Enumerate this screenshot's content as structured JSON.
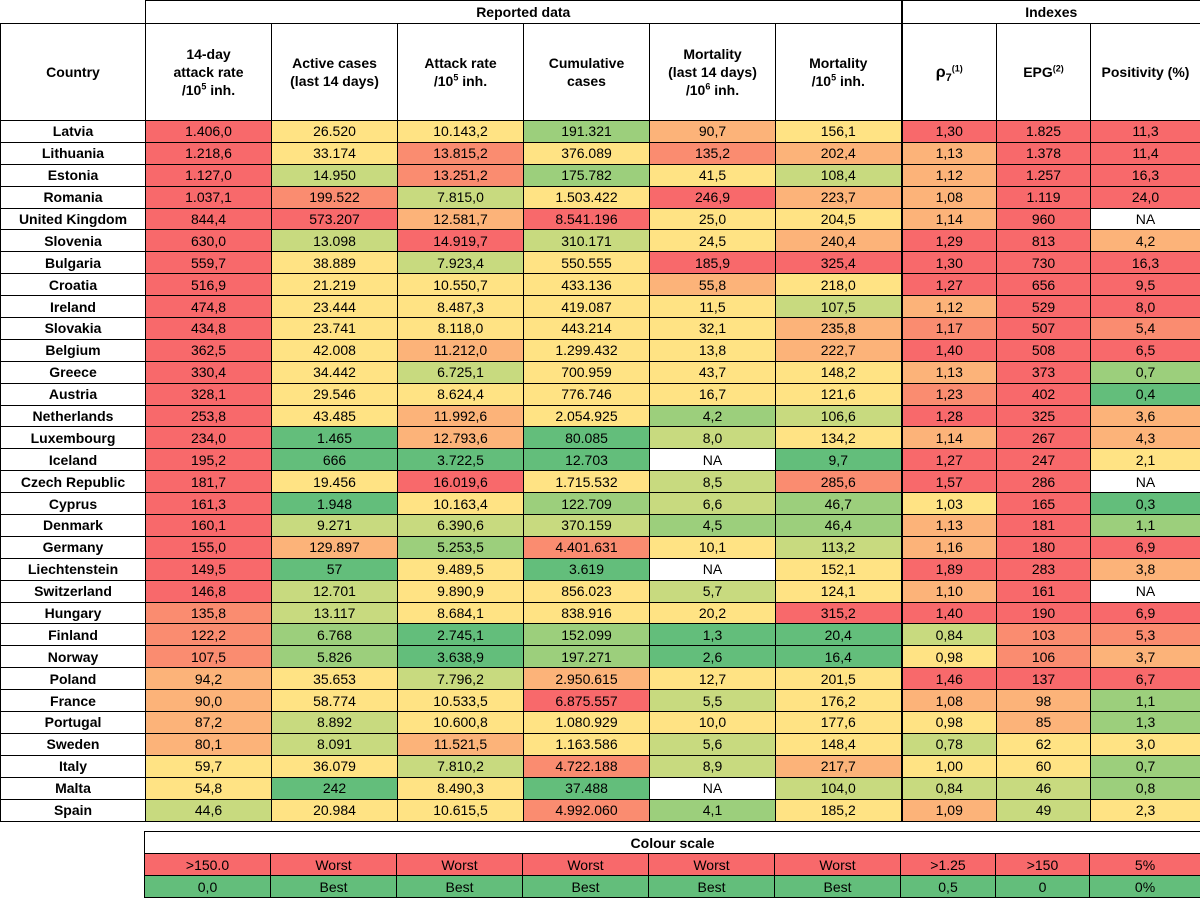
{
  "colors": {
    "c1": "#f8696b",
    "c2": "#fa8c70",
    "c3": "#fcb379",
    "c4": "#ffe384",
    "c5": "#c8da7f",
    "c6": "#9ccf7c",
    "c7": "#63be7b",
    "white": "#ffffff"
  },
  "header": {
    "group_reported": "Reported data",
    "group_indexes": "Indexes",
    "col_country": "Country",
    "col_attack14_l1": "14-day",
    "col_attack14_l2": "attack rate",
    "col_attack14_l3": "/10",
    "col_attack14_sup": "5",
    "col_attack14_l3b": " inh.",
    "col_active_l1": "Active cases",
    "col_active_l2": "(last 14 days)",
    "col_attack_l1": "Attack rate",
    "col_attack_l2": "/10",
    "col_attack_sup": "5",
    "col_attack_l2b": " inh.",
    "col_cum_l1": "Cumulative",
    "col_cum_l2": "cases",
    "col_mort14_l1": "Mortality",
    "col_mort14_l2": "(last 14 days)",
    "col_mort14_l3": "/10",
    "col_mort14_sup": "6",
    "col_mort14_l3b": " inh.",
    "col_mort_l1": "Mortality",
    "col_mort_l2": "/10",
    "col_mort_sup": "5",
    "col_mort_l2b": " inh.",
    "col_rho": "ρ",
    "col_rho_sub": "7",
    "col_rho_sup": "(1)",
    "col_epg": "EPG",
    "col_epg_sup": "(2)",
    "col_pos": "Positivity (%)"
  },
  "rows": [
    {
      "country": "Latvia",
      "vals": [
        "1.406,0",
        "26.520",
        "10.143,2",
        "191.321",
        "90,7",
        "156,1",
        "1,30",
        "1.825",
        "11,3"
      ],
      "c": [
        "c1",
        "c4",
        "c4",
        "c6",
        "c3",
        "c4",
        "c1",
        "c1",
        "c1"
      ]
    },
    {
      "country": "Lithuania",
      "vals": [
        "1.218,6",
        "33.174",
        "13.815,2",
        "376.089",
        "135,2",
        "202,4",
        "1,13",
        "1.378",
        "11,4"
      ],
      "c": [
        "c1",
        "c4",
        "c2",
        "c4",
        "c2",
        "c3",
        "c3",
        "c1",
        "c1"
      ]
    },
    {
      "country": "Estonia",
      "vals": [
        "1.127,0",
        "14.950",
        "13.251,2",
        "175.782",
        "41,5",
        "108,4",
        "1,12",
        "1.257",
        "16,3"
      ],
      "c": [
        "c1",
        "c5",
        "c2",
        "c6",
        "c4",
        "c5",
        "c3",
        "c1",
        "c1"
      ]
    },
    {
      "country": "Romania",
      "vals": [
        "1.037,1",
        "199.522",
        "7.815,0",
        "1.503.422",
        "246,9",
        "223,7",
        "1,08",
        "1.119",
        "24,0"
      ],
      "c": [
        "c1",
        "c2",
        "c5",
        "c4",
        "c1",
        "c3",
        "c3",
        "c1",
        "c1"
      ]
    },
    {
      "country": "United Kingdom",
      "vals": [
        "844,4",
        "573.207",
        "12.581,7",
        "8.541.196",
        "25,0",
        "204,5",
        "1,14",
        "960",
        "NA"
      ],
      "c": [
        "c1",
        "c1",
        "c3",
        "c1",
        "c4",
        "c4",
        "c3",
        "c1",
        "white"
      ]
    },
    {
      "country": "Slovenia",
      "vals": [
        "630,0",
        "13.098",
        "14.919,7",
        "310.171",
        "24,5",
        "240,4",
        "1,29",
        "813",
        "4,2"
      ],
      "c": [
        "c1",
        "c5",
        "c1",
        "c5",
        "c4",
        "c3",
        "c1",
        "c1",
        "c3"
      ]
    },
    {
      "country": "Bulgaria",
      "vals": [
        "559,7",
        "38.889",
        "7.923,4",
        "550.555",
        "185,9",
        "325,4",
        "1,30",
        "730",
        "16,3"
      ],
      "c": [
        "c1",
        "c4",
        "c5",
        "c4",
        "c1",
        "c1",
        "c1",
        "c1",
        "c1"
      ]
    },
    {
      "country": "Croatia",
      "vals": [
        "516,9",
        "21.219",
        "10.550,7",
        "433.136",
        "55,8",
        "218,0",
        "1,27",
        "656",
        "9,5"
      ],
      "c": [
        "c1",
        "c4",
        "c4",
        "c4",
        "c3",
        "c4",
        "c1",
        "c1",
        "c1"
      ]
    },
    {
      "country": "Ireland",
      "vals": [
        "474,8",
        "23.444",
        "8.487,3",
        "419.087",
        "11,5",
        "107,5",
        "1,12",
        "529",
        "8,0"
      ],
      "c": [
        "c1",
        "c4",
        "c4",
        "c4",
        "c4",
        "c5",
        "c3",
        "c1",
        "c1"
      ]
    },
    {
      "country": "Slovakia",
      "vals": [
        "434,8",
        "23.741",
        "8.118,0",
        "443.214",
        "32,1",
        "235,8",
        "1,17",
        "507",
        "5,4"
      ],
      "c": [
        "c1",
        "c4",
        "c4",
        "c4",
        "c4",
        "c3",
        "c2",
        "c1",
        "c2"
      ]
    },
    {
      "country": "Belgium",
      "vals": [
        "362,5",
        "42.008",
        "11.212,0",
        "1.299.432",
        "13,8",
        "222,7",
        "1,40",
        "508",
        "6,5"
      ],
      "c": [
        "c1",
        "c4",
        "c3",
        "c4",
        "c4",
        "c3",
        "c1",
        "c1",
        "c1"
      ]
    },
    {
      "country": "Greece",
      "vals": [
        "330,4",
        "34.442",
        "6.725,1",
        "700.959",
        "43,7",
        "148,2",
        "1,13",
        "373",
        "0,7"
      ],
      "c": [
        "c1",
        "c4",
        "c5",
        "c4",
        "c4",
        "c4",
        "c3",
        "c1",
        "c6"
      ]
    },
    {
      "country": "Austria",
      "vals": [
        "328,1",
        "29.546",
        "8.624,4",
        "776.746",
        "16,7",
        "121,6",
        "1,23",
        "402",
        "0,4"
      ],
      "c": [
        "c1",
        "c4",
        "c4",
        "c4",
        "c4",
        "c4",
        "c2",
        "c1",
        "c7"
      ]
    },
    {
      "country": "Netherlands",
      "vals": [
        "253,8",
        "43.485",
        "11.992,6",
        "2.054.925",
        "4,2",
        "106,6",
        "1,28",
        "325",
        "3,6"
      ],
      "c": [
        "c1",
        "c4",
        "c3",
        "c4",
        "c6",
        "c5",
        "c1",
        "c1",
        "c3"
      ]
    },
    {
      "country": "Luxembourg",
      "vals": [
        "234,0",
        "1.465",
        "12.793,6",
        "80.085",
        "8,0",
        "134,2",
        "1,14",
        "267",
        "4,3"
      ],
      "c": [
        "c1",
        "c7",
        "c3",
        "c7",
        "c5",
        "c4",
        "c3",
        "c1",
        "c3"
      ]
    },
    {
      "country": "Iceland",
      "vals": [
        "195,2",
        "666",
        "3.722,5",
        "12.703",
        "NA",
        "9,7",
        "1,27",
        "247",
        "2,1"
      ],
      "c": [
        "c1",
        "c7",
        "c7",
        "c7",
        "white",
        "c7",
        "c1",
        "c1",
        "c4"
      ]
    },
    {
      "country": "Czech Republic",
      "vals": [
        "181,7",
        "19.456",
        "16.019,6",
        "1.715.532",
        "8,5",
        "285,6",
        "1,57",
        "286",
        "NA"
      ],
      "c": [
        "c1",
        "c4",
        "c1",
        "c4",
        "c5",
        "c2",
        "c1",
        "c1",
        "white"
      ]
    },
    {
      "country": "Cyprus",
      "vals": [
        "161,3",
        "1.948",
        "10.163,4",
        "122.709",
        "6,6",
        "46,7",
        "1,03",
        "165",
        "0,3"
      ],
      "c": [
        "c1",
        "c7",
        "c4",
        "c6",
        "c5",
        "c6",
        "c4",
        "c1",
        "c7"
      ]
    },
    {
      "country": "Denmark",
      "vals": [
        "160,1",
        "9.271",
        "6.390,6",
        "370.159",
        "4,5",
        "46,4",
        "1,13",
        "181",
        "1,1"
      ],
      "c": [
        "c1",
        "c5",
        "c5",
        "c5",
        "c6",
        "c6",
        "c3",
        "c1",
        "c6"
      ]
    },
    {
      "country": "Germany",
      "vals": [
        "155,0",
        "129.897",
        "5.253,5",
        "4.401.631",
        "10,1",
        "113,2",
        "1,16",
        "180",
        "6,9"
      ],
      "c": [
        "c1",
        "c3",
        "c6",
        "c2",
        "c4",
        "c5",
        "c3",
        "c1",
        "c1"
      ]
    },
    {
      "country": "Liechtenstein",
      "vals": [
        "149,5",
        "57",
        "9.489,5",
        "3.619",
        "NA",
        "152,1",
        "1,89",
        "283",
        "3,8"
      ],
      "c": [
        "c1",
        "c7",
        "c4",
        "c7",
        "white",
        "c4",
        "c1",
        "c1",
        "c3"
      ]
    },
    {
      "country": "Switzerland",
      "vals": [
        "146,8",
        "12.701",
        "9.890,9",
        "856.023",
        "5,7",
        "124,1",
        "1,10",
        "161",
        "NA"
      ],
      "c": [
        "c1",
        "c5",
        "c4",
        "c4",
        "c5",
        "c4",
        "c3",
        "c1",
        "white"
      ]
    },
    {
      "country": "Hungary",
      "vals": [
        "135,8",
        "13.117",
        "8.684,1",
        "838.916",
        "20,2",
        "315,2",
        "1,40",
        "190",
        "6,9"
      ],
      "c": [
        "c2",
        "c5",
        "c4",
        "c4",
        "c4",
        "c1",
        "c1",
        "c1",
        "c1"
      ]
    },
    {
      "country": "Finland",
      "vals": [
        "122,2",
        "6.768",
        "2.745,1",
        "152.099",
        "1,3",
        "20,4",
        "0,84",
        "103",
        "5,3"
      ],
      "c": [
        "c2",
        "c6",
        "c7",
        "c6",
        "c7",
        "c7",
        "c5",
        "c2",
        "c2"
      ]
    },
    {
      "country": "Norway",
      "vals": [
        "107,5",
        "5.826",
        "3.638,9",
        "197.271",
        "2,6",
        "16,4",
        "0,98",
        "106",
        "3,7"
      ],
      "c": [
        "c2",
        "c6",
        "c7",
        "c6",
        "c7",
        "c7",
        "c4",
        "c2",
        "c3"
      ]
    },
    {
      "country": "Poland",
      "vals": [
        "94,2",
        "35.653",
        "7.796,2",
        "2.950.615",
        "12,7",
        "201,5",
        "1,46",
        "137",
        "6,7"
      ],
      "c": [
        "c3",
        "c4",
        "c5",
        "c3",
        "c4",
        "c4",
        "c1",
        "c1",
        "c1"
      ]
    },
    {
      "country": "France",
      "vals": [
        "90,0",
        "58.774",
        "10.533,5",
        "6.875.557",
        "5,5",
        "176,2",
        "1,08",
        "98",
        "1,1"
      ],
      "c": [
        "c3",
        "c4",
        "c4",
        "c1",
        "c5",
        "c4",
        "c3",
        "c3",
        "c6"
      ]
    },
    {
      "country": "Portugal",
      "vals": [
        "87,2",
        "8.892",
        "10.600,8",
        "1.080.929",
        "10,0",
        "177,6",
        "0,98",
        "85",
        "1,3"
      ],
      "c": [
        "c3",
        "c5",
        "c4",
        "c4",
        "c4",
        "c4",
        "c4",
        "c3",
        "c6"
      ]
    },
    {
      "country": "Sweden",
      "vals": [
        "80,1",
        "8.091",
        "11.521,5",
        "1.163.586",
        "5,6",
        "148,4",
        "0,78",
        "62",
        "3,0"
      ],
      "c": [
        "c3",
        "c5",
        "c3",
        "c4",
        "c5",
        "c4",
        "c5",
        "c4",
        "c4"
      ]
    },
    {
      "country": "Italy",
      "vals": [
        "59,7",
        "36.079",
        "7.810,2",
        "4.722.188",
        "8,9",
        "217,7",
        "1,00",
        "60",
        "0,7"
      ],
      "c": [
        "c4",
        "c4",
        "c5",
        "c2",
        "c5",
        "c3",
        "c4",
        "c4",
        "c6"
      ]
    },
    {
      "country": "Malta",
      "vals": [
        "54,8",
        "242",
        "8.490,3",
        "37.488",
        "NA",
        "104,0",
        "0,84",
        "46",
        "0,8"
      ],
      "c": [
        "c4",
        "c7",
        "c4",
        "c7",
        "white",
        "c5",
        "c5",
        "c5",
        "c6"
      ]
    },
    {
      "country": "Spain",
      "vals": [
        "44,6",
        "20.984",
        "10.615,5",
        "4.992.060",
        "4,1",
        "185,2",
        "1,09",
        "49",
        "2,3"
      ],
      "c": [
        "c5",
        "c4",
        "c4",
        "c2",
        "c6",
        "c4",
        "c3",
        "c5",
        "c4"
      ]
    }
  ],
  "scale": {
    "title": "Colour scale",
    "worst": [
      ">150.0",
      "Worst",
      "Worst",
      "Worst",
      "Worst",
      "Worst",
      ">1.25",
      ">150",
      "5%"
    ],
    "best": [
      "0,0",
      "Best",
      "Best",
      "Best",
      "Best",
      "Best",
      "0,5",
      "0",
      "0%"
    ]
  }
}
